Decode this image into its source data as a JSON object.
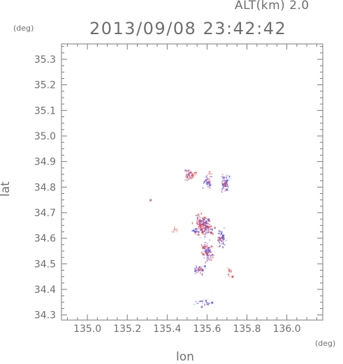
{
  "header": {
    "altitude_label": "ALT(km) 2.0",
    "timestamp": "2013/09/08 23:42:42"
  },
  "units": {
    "y_unit": "(deg)",
    "x_unit": "(deg)"
  },
  "axes": {
    "xlabel": "lon",
    "ylabel": "lat",
    "xlim": [
      134.87,
      136.18
    ],
    "ylim": [
      34.28,
      35.36
    ],
    "xticks": [
      "135.0",
      "135.2",
      "135.4",
      "135.6",
      "135.8",
      "136.0"
    ],
    "yticks": [
      "34.3",
      "34.4",
      "34.5",
      "34.6",
      "34.7",
      "34.8",
      "34.9",
      "35.0",
      "35.1",
      "35.2",
      "35.3"
    ]
  },
  "colors": {
    "positive": "#e85050",
    "negative": "#5a5aeb",
    "axis": "#7a7a7a",
    "text": "#6e6e6e"
  },
  "echo_clusters": [
    {
      "lon": 135.51,
      "lat": 34.85,
      "spread": [
        0.04,
        0.03
      ],
      "count": 45,
      "pos_ratio": 0.6
    },
    {
      "lon": 135.6,
      "lat": 34.83,
      "spread": [
        0.03,
        0.04
      ],
      "count": 40,
      "pos_ratio": 0.35
    },
    {
      "lon": 135.69,
      "lat": 34.82,
      "spread": [
        0.03,
        0.05
      ],
      "count": 55,
      "pos_ratio": 0.3
    },
    {
      "lon": 135.58,
      "lat": 34.65,
      "spread": [
        0.07,
        0.06
      ],
      "count": 160,
      "pos_ratio": 0.55
    },
    {
      "lon": 135.6,
      "lat": 34.55,
      "spread": [
        0.04,
        0.05
      ],
      "count": 90,
      "pos_ratio": 0.55
    },
    {
      "lon": 135.67,
      "lat": 34.6,
      "spread": [
        0.03,
        0.05
      ],
      "count": 45,
      "pos_ratio": 0.4
    },
    {
      "lon": 135.56,
      "lat": 34.48,
      "spread": [
        0.05,
        0.03
      ],
      "count": 35,
      "pos_ratio": 0.35
    },
    {
      "lon": 135.58,
      "lat": 34.35,
      "spread": [
        0.05,
        0.02
      ],
      "count": 25,
      "pos_ratio": 0.15
    },
    {
      "lon": 135.71,
      "lat": 34.47,
      "spread": [
        0.02,
        0.03
      ],
      "count": 12,
      "pos_ratio": 0.8
    },
    {
      "lon": 135.31,
      "lat": 34.75,
      "spread": [
        0.005,
        0.005
      ],
      "count": 3,
      "pos_ratio": 1.0
    },
    {
      "lon": 135.43,
      "lat": 34.63,
      "spread": [
        0.02,
        0.02
      ],
      "count": 8,
      "pos_ratio": 0.8
    }
  ]
}
